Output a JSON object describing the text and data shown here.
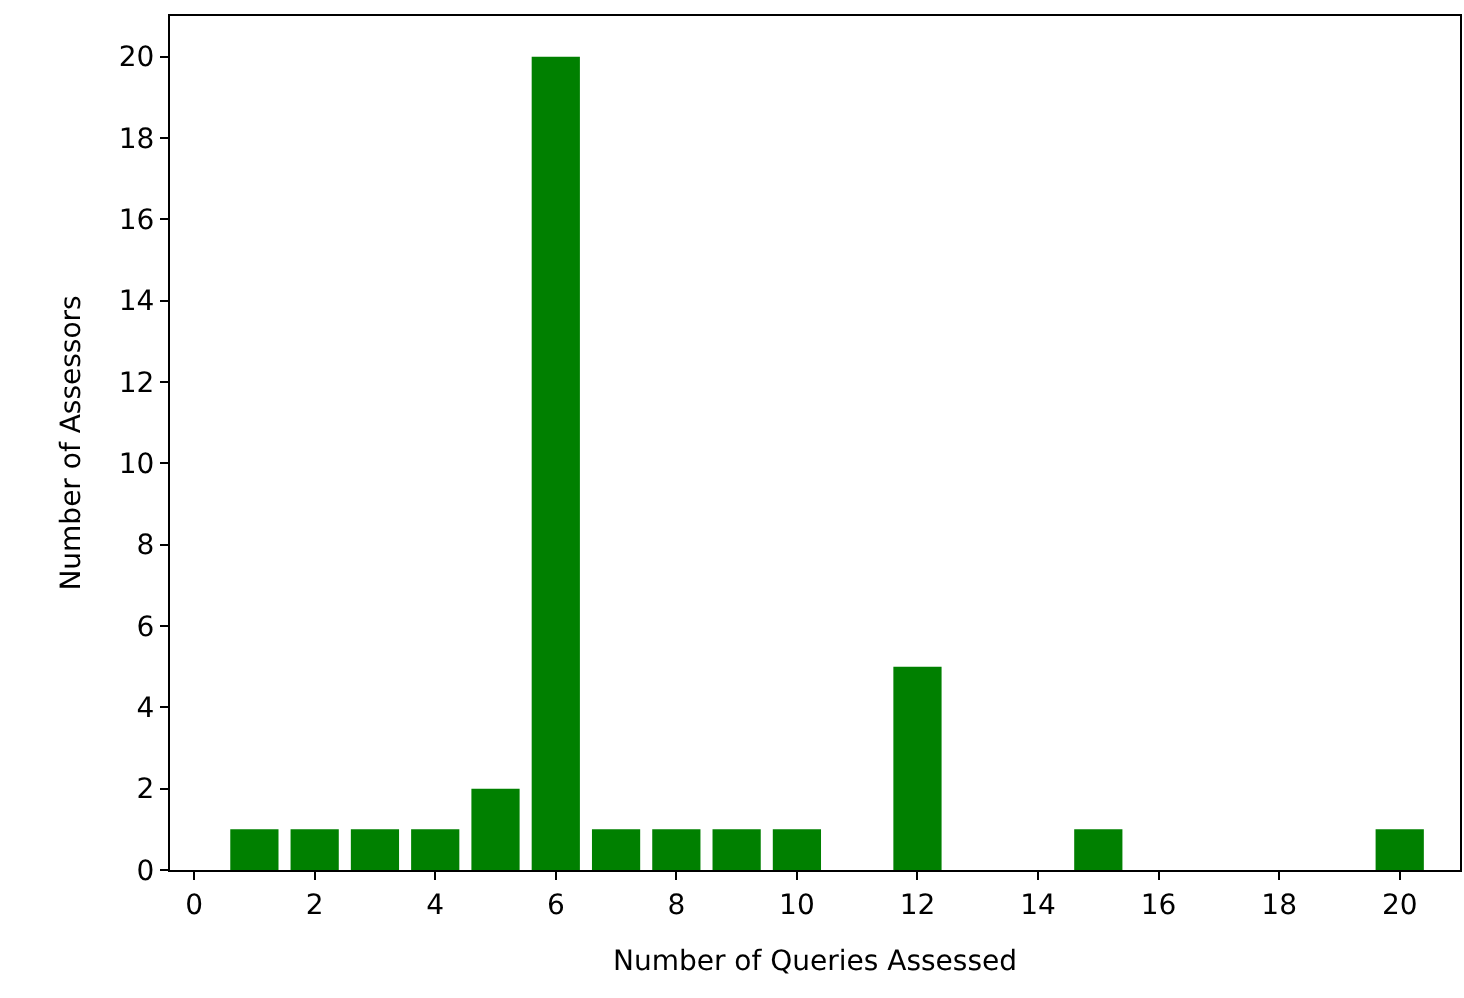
{
  "chart_data": {
    "type": "bar",
    "xlabel": "Number of Queries Assessed",
    "ylabel": "Number of Assessors",
    "x": [
      1,
      2,
      3,
      4,
      5,
      6,
      7,
      8,
      9,
      10,
      12,
      15,
      20
    ],
    "values": [
      1,
      1,
      1,
      1,
      2,
      20,
      1,
      1,
      1,
      1,
      5,
      1,
      1
    ],
    "color": "#008000",
    "xlim": [
      -0.4,
      21.0
    ],
    "xticks": [
      0,
      2,
      4,
      6,
      8,
      10,
      12,
      14,
      16,
      18,
      20
    ],
    "ylim": [
      0,
      21
    ],
    "yticks": [
      0,
      2,
      4,
      6,
      8,
      10,
      12,
      14,
      16,
      18,
      20
    ]
  }
}
